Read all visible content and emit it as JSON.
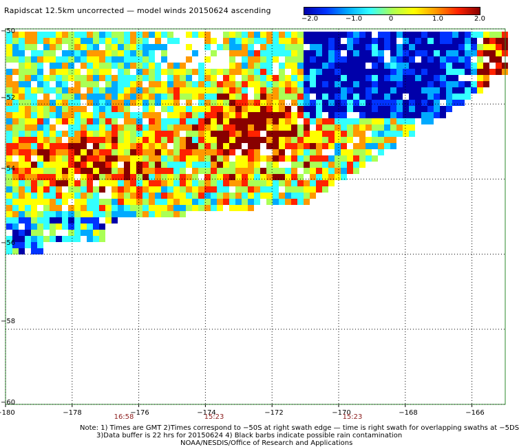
{
  "title": "Rapidscat 12.5km uncorrected — model winds 20150624 ascending",
  "colorbar": {
    "ticks": [
      "−2.0",
      "−1.0",
      "0",
      "1.0",
      "2.0"
    ],
    "range": [
      -2.0,
      2.0
    ],
    "colors": [
      "#0000aa",
      "#0033ff",
      "#00aaff",
      "#33ffff",
      "#aaff55",
      "#ffff00",
      "#ff9900",
      "#ff2200",
      "#880000"
    ]
  },
  "map": {
    "lat_labels": [
      "−50",
      "−52",
      "−54",
      "−56",
      "−58",
      "−60"
    ],
    "lat_values": [
      -50,
      -52,
      -54,
      -56,
      -58,
      -60
    ],
    "lon_labels": [
      "−180",
      "−178",
      "−176",
      "−174",
      "−172",
      "−170",
      "−168",
      "−166"
    ],
    "lon_values": [
      -180,
      -178,
      -176,
      -174,
      -172,
      -170,
      -168,
      -166
    ],
    "lat_range": [
      -60,
      -50
    ],
    "lon_range": [
      -180,
      -165
    ],
    "grid_color": "#2a8a2a",
    "times": [
      {
        "label": "16:58",
        "lon": -176.7
      },
      {
        "label": "15:23",
        "lon": -173.7
      },
      {
        "label": "15:23",
        "lon": -169.7
      }
    ]
  },
  "notes": {
    "line1": "Note: 1) Times are GMT 2)Times correspond to −50S at right swath edge — time is right swath for overlapping swaths at −5DS",
    "line2": "3)Data buffer is 22 hrs for 20150624 4) Black barbs indicate possible rain contamination",
    "line3": "NOAA/NESDIS/Office of Research and Applications"
  }
}
